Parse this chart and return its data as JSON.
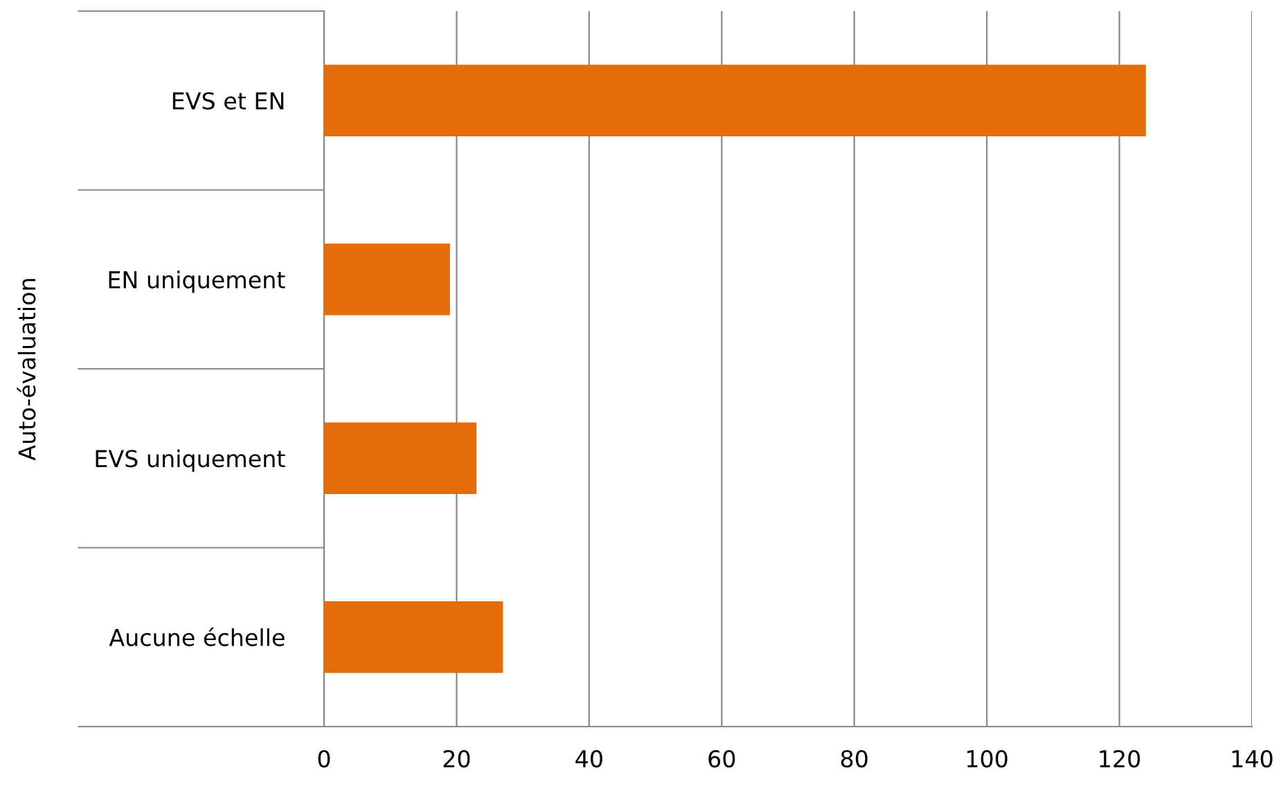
{
  "chart_data": {
    "type": "bar",
    "orientation": "horizontal",
    "ylabel": "Auto-évaluation",
    "categories": [
      "EVS et EN",
      "EN uniquement",
      "EVS uniquement",
      "Aucune échelle"
    ],
    "values": [
      124,
      19,
      23,
      27
    ],
    "color": "#e46c0a",
    "xlim": [
      0,
      140
    ],
    "xticks": [
      0,
      20,
      40,
      60,
      80,
      100,
      120,
      140
    ],
    "grid": "x",
    "legend": false
  }
}
